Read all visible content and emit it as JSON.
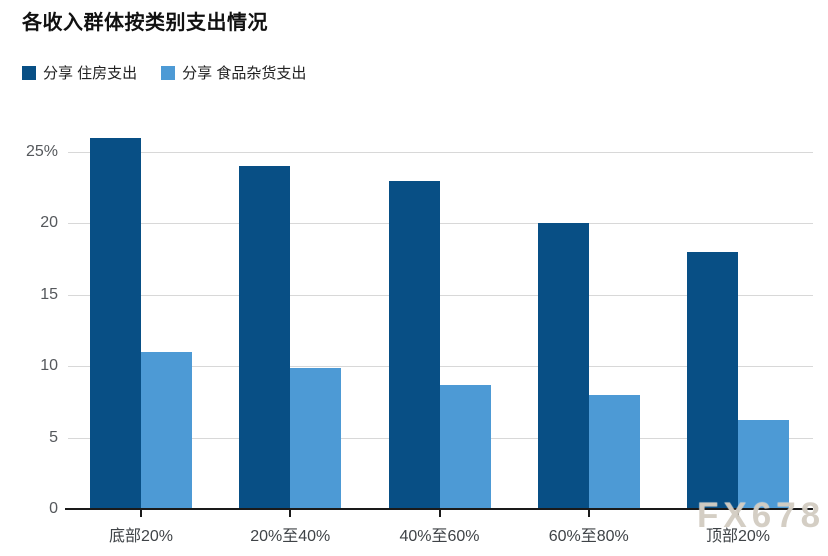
{
  "chart_data": {
    "type": "bar",
    "title": "各收入群体按类别支出情况",
    "categories": [
      "底部20%",
      "20%至40%",
      "40%至60%",
      "60%至80%",
      "顶部20%"
    ],
    "series": [
      {
        "name": "分享 住房支出",
        "color": "#084f85",
        "values": [
          26,
          24,
          23,
          20,
          18
        ]
      },
      {
        "name": "分享 食品杂货支出",
        "color": "#4d9ad5",
        "values": [
          11,
          9.9,
          8.7,
          8,
          6.2
        ]
      }
    ],
    "xlabel": "",
    "ylabel": "",
    "ylim": [
      0,
      27.5
    ],
    "yticks": [
      0,
      5,
      10,
      15,
      20,
      25
    ],
    "ytick_labels": [
      "0",
      "5",
      "10",
      "15",
      "20",
      "25%"
    ],
    "grid": "horizontal",
    "legend_position": "top-left"
  },
  "watermark": {
    "text": "FX678"
  }
}
